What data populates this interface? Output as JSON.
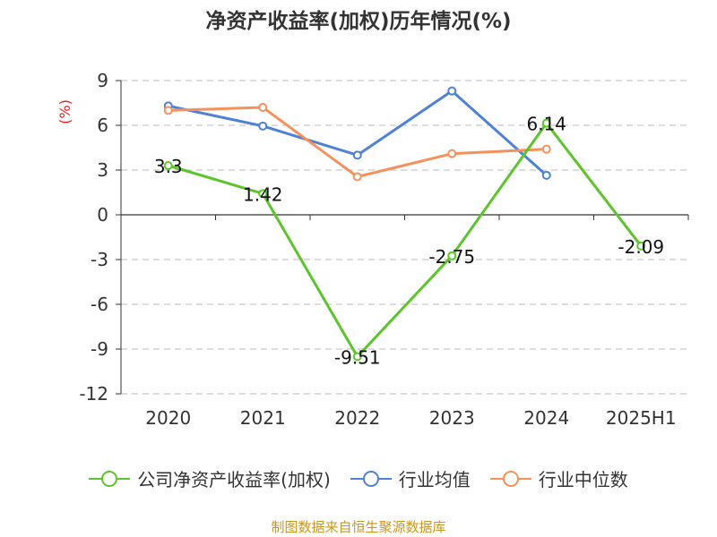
{
  "chart_data": {
    "type": "line",
    "title": "净资产收益率(加权)历年情况(%)",
    "ylabel": "(%)",
    "xlabel": "",
    "categories": [
      "2020",
      "2021",
      "2022",
      "2023",
      "2024",
      "2025H1"
    ],
    "ylim": [
      -12,
      9
    ],
    "yticks": [
      9,
      6,
      3,
      0,
      -3,
      -6,
      -9,
      -12
    ],
    "grid": true,
    "legend_position": "bottom",
    "series": [
      {
        "name": "公司净资产收益率(加权)",
        "values": [
          3.3,
          1.42,
          -9.51,
          -2.75,
          6.14,
          -2.09
        ],
        "color": "#5cc52b",
        "data_labels": [
          "3.3",
          "1.42",
          "-9.51",
          "-2.75",
          "6.14",
          "-2.09"
        ]
      },
      {
        "name": "行业均值",
        "values": [
          7.3,
          5.95,
          4.0,
          8.3,
          2.65,
          null
        ],
        "color": "#4f81d6"
      },
      {
        "name": "行业中位数",
        "values": [
          7.0,
          7.2,
          2.55,
          4.1,
          4.4,
          null
        ],
        "color": "#f7915c"
      }
    ]
  },
  "source": "制图数据来自恒生聚源数据库",
  "colors": {
    "axis_label_red": "#e02020",
    "grid": "#bbbbbb",
    "text": "#333333"
  }
}
